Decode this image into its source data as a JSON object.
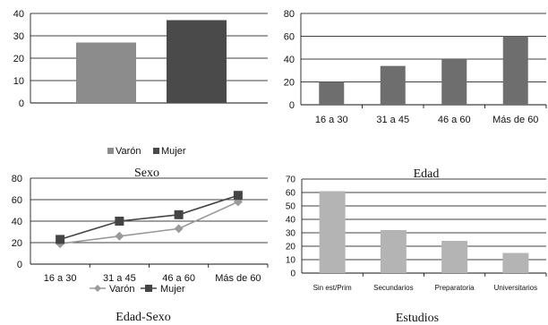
{
  "chart_data": [
    {
      "type": "bar",
      "title": "Sexo",
      "categories": [
        ""
      ],
      "series": [
        {
          "name": "Varón",
          "values": [
            27
          ],
          "color": "#8c8c8c"
        },
        {
          "name": "Mujer",
          "values": [
            37
          ],
          "color": "#4a4a4a"
        }
      ],
      "ylim": [
        0,
        40
      ],
      "yticks": [
        0,
        10,
        20,
        30,
        40
      ],
      "grid": true,
      "legend": "bottom"
    },
    {
      "type": "bar",
      "title": "Edad",
      "categories": [
        "16 a 30",
        "31 a 45",
        "46 a 60",
        "Más de 60"
      ],
      "values": [
        20,
        34,
        40,
        60
      ],
      "color": "#6e6e6e",
      "ylim": [
        0,
        80
      ],
      "yticks": [
        0,
        20,
        40,
        60,
        80
      ],
      "grid": true
    },
    {
      "type": "line",
      "title": "Edad-Sexo",
      "categories": [
        "16 a 30",
        "31 a 45",
        "46 a 60",
        "Más de 60"
      ],
      "series": [
        {
          "name": "Varón",
          "values": [
            19,
            26,
            33,
            58
          ],
          "color": "#9a9a9a",
          "marker": "diamond"
        },
        {
          "name": "Mujer",
          "values": [
            23,
            40,
            46,
            64
          ],
          "color": "#444444",
          "marker": "square"
        }
      ],
      "ylim": [
        0,
        80
      ],
      "yticks": [
        0,
        20,
        40,
        60,
        80
      ],
      "grid": true,
      "legend": "bottom"
    },
    {
      "type": "bar",
      "title": "Estudios",
      "categories": [
        "Sin est/Prim",
        "Secundarios",
        "Preparatoria",
        "Universitarios"
      ],
      "values": [
        61,
        32,
        24,
        15
      ],
      "color": "#b4b4b4",
      "ylim": [
        0,
        70
      ],
      "yticks": [
        0,
        10,
        20,
        30,
        40,
        50,
        60,
        70
      ],
      "grid": true
    }
  ]
}
